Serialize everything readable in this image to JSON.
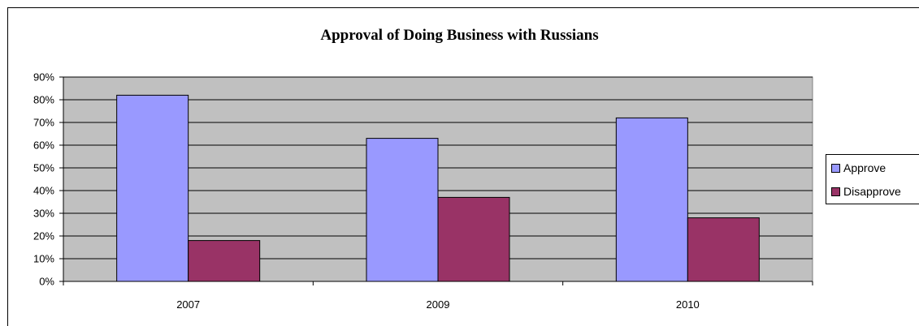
{
  "chart_data": {
    "type": "bar",
    "title": "Approval of Doing Business with Russians",
    "categories": [
      "2007",
      "2009",
      "2010"
    ],
    "series": [
      {
        "name": "Approve",
        "values": [
          82,
          63,
          72
        ],
        "color": "#9999ff"
      },
      {
        "name": "Disapprove",
        "values": [
          18,
          37,
          28
        ],
        "color": "#993366"
      }
    ],
    "ylim": [
      0,
      90
    ],
    "y_ticks": [
      "0%",
      "10%",
      "20%",
      "30%",
      "40%",
      "50%",
      "60%",
      "70%",
      "80%",
      "90%"
    ],
    "y_unit": "%",
    "grid": true,
    "plot_background": "#c0c0c0",
    "legend": "right"
  }
}
